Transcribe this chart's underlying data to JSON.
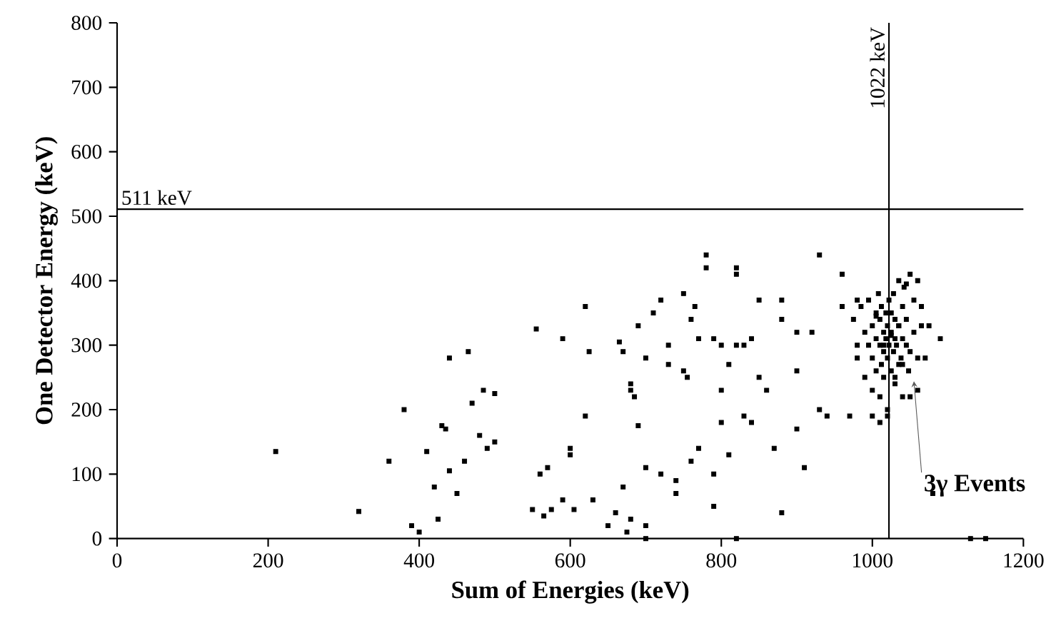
{
  "chart_data": {
    "type": "scatter",
    "xlabel": "Sum of Energies (keV)",
    "ylabel": "One Detector Energy (keV)",
    "xlim": [
      0,
      1200
    ],
    "ylim": [
      0,
      800
    ],
    "xticks": [
      0,
      200,
      400,
      600,
      800,
      1000,
      1200
    ],
    "yticks": [
      0,
      100,
      200,
      300,
      400,
      500,
      600,
      700,
      800
    ],
    "grid": false,
    "marker": "square",
    "ref_lines": [
      {
        "axis": "y",
        "value": 511,
        "label": "511 keV"
      },
      {
        "axis": "x",
        "value": 1022,
        "label": "1022 keV"
      }
    ],
    "annotations": [
      {
        "text": "3γ Events",
        "x": 1050,
        "y": 250
      }
    ],
    "series": [
      {
        "color": "#000000",
        "x": [
          210,
          320,
          360,
          380,
          390,
          400,
          410,
          420,
          425,
          430,
          435,
          440,
          440,
          450,
          460,
          465,
          470,
          480,
          485,
          490,
          500,
          500,
          550,
          555,
          560,
          565,
          570,
          575,
          590,
          590,
          600,
          600,
          605,
          620,
          620,
          625,
          630,
          650,
          660,
          665,
          670,
          670,
          675,
          680,
          680,
          680,
          685,
          690,
          690,
          700,
          700,
          700,
          710,
          720,
          720,
          730,
          730,
          740,
          740,
          750,
          750,
          755,
          760,
          760,
          765,
          770,
          770,
          780,
          780,
          790,
          790,
          790,
          800,
          800,
          800,
          810,
          810,
          820,
          820,
          820,
          830,
          830,
          840,
          840,
          850,
          850,
          860,
          870,
          880,
          880,
          880,
          900,
          900,
          900,
          910,
          920,
          930,
          930,
          940,
          960,
          960,
          970,
          980,
          980,
          700,
          820,
          1130,
          1150,
          975,
          980,
          985,
          990,
          990,
          995,
          995,
          1000,
          1000,
          1000,
          1005,
          1005,
          1005,
          1008,
          1010,
          1010,
          1010,
          1012,
          1012,
          1015,
          1015,
          1015,
          1018,
          1018,
          1020,
          1020,
          1020,
          1022,
          1022,
          1025,
          1025,
          1025,
          1028,
          1028,
          1030,
          1030,
          1030,
          1032,
          1035,
          1035,
          1035,
          1038,
          1040,
          1040,
          1040,
          1042,
          1045,
          1045,
          1048,
          1050,
          1050,
          1055,
          1055,
          1060,
          1060,
          1065,
          1000,
          1010,
          1020,
          1030,
          1040,
          1015,
          1025,
          1035,
          1005,
          1045,
          1080,
          1090,
          1070,
          1050,
          1060,
          1075,
          1065
        ],
        "values": [
          135,
          42,
          120,
          200,
          20,
          10,
          135,
          80,
          30,
          175,
          170,
          105,
          280,
          70,
          120,
          290,
          210,
          160,
          230,
          140,
          225,
          150,
          45,
          325,
          100,
          35,
          110,
          45,
          310,
          60,
          130,
          140,
          45,
          360,
          190,
          290,
          60,
          20,
          40,
          305,
          290,
          80,
          10,
          30,
          240,
          230,
          220,
          330,
          175,
          280,
          110,
          20,
          350,
          370,
          100,
          270,
          300,
          70,
          90,
          380,
          260,
          250,
          120,
          340,
          360,
          310,
          140,
          440,
          420,
          50,
          100,
          310,
          300,
          230,
          180,
          270,
          130,
          410,
          420,
          300,
          190,
          300,
          180,
          310,
          370,
          250,
          230,
          140,
          370,
          340,
          40,
          320,
          260,
          170,
          110,
          320,
          440,
          200,
          190,
          410,
          360,
          190,
          370,
          300,
          0,
          0,
          0,
          0,
          340,
          280,
          360,
          320,
          250,
          370,
          300,
          330,
          280,
          190,
          350,
          260,
          310,
          380,
          300,
          340,
          220,
          270,
          360,
          320,
          290,
          250,
          350,
          310,
          330,
          280,
          200,
          370,
          300,
          320,
          260,
          350,
          290,
          380,
          310,
          240,
          340,
          300,
          270,
          400,
          330,
          280,
          360,
          310,
          220,
          390,
          300,
          340,
          260,
          410,
          290,
          320,
          370,
          280,
          400,
          330,
          230,
          180,
          190,
          250,
          270,
          300,
          315,
          330,
          345,
          395,
          70,
          310,
          280,
          220,
          230,
          330,
          360
        ]
      }
    ]
  }
}
